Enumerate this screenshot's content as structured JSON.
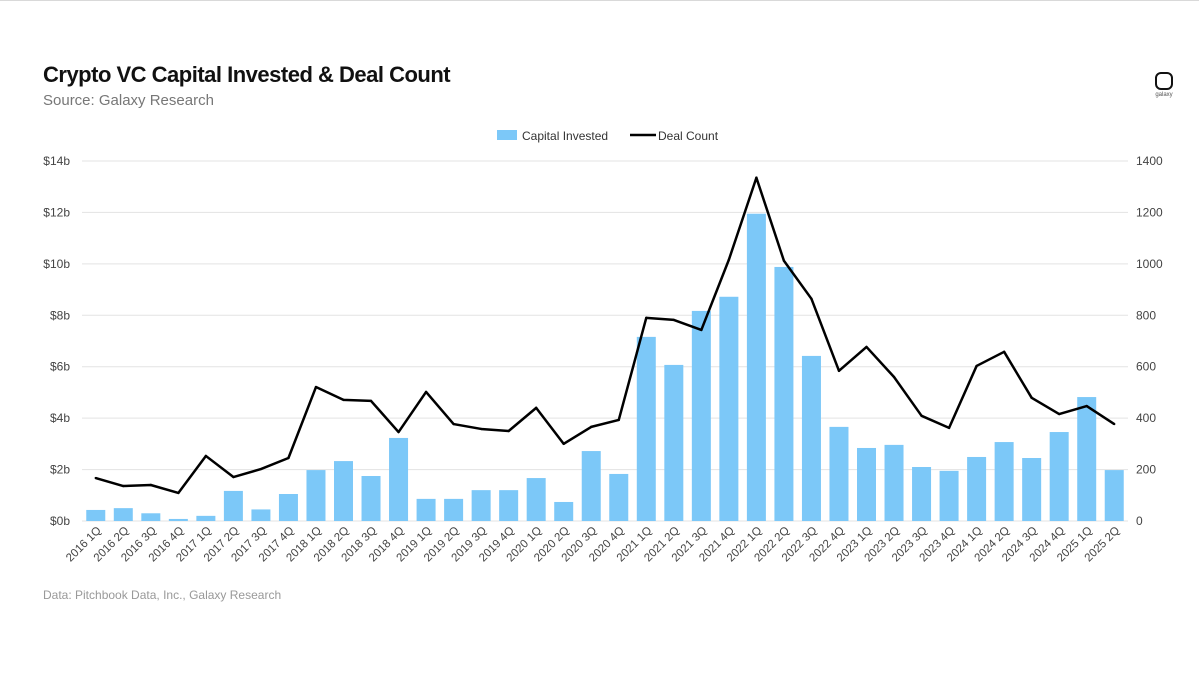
{
  "header": {
    "title": "Crypto VC Capital Invested & Deal Count",
    "subtitle": "Source: Galaxy Research",
    "logo_text": "galaxy"
  },
  "footer": {
    "source": "Data: Pitchbook Data, Inc., Galaxy Research"
  },
  "chart_data": {
    "type": "bar+line",
    "title": "Crypto VC Capital Invested & Deal Count",
    "legend_position": "top-center",
    "grid": true,
    "colors": {
      "bars": "#7cc8f8",
      "line": "#000000"
    },
    "categories": [
      "2016 1Q",
      "2016 2Q",
      "2016 3Q",
      "2016 4Q",
      "2017 1Q",
      "2017 2Q",
      "2017 3Q",
      "2017 4Q",
      "2018 1Q",
      "2018 2Q",
      "2018 3Q",
      "2018 4Q",
      "2019 1Q",
      "2019 2Q",
      "2019 3Q",
      "2019 4Q",
      "2020 1Q",
      "2020 2Q",
      "2020 3Q",
      "2020 4Q",
      "2021 1Q",
      "2021 2Q",
      "2021 3Q",
      "2021 4Q",
      "2022 1Q",
      "2022 2Q",
      "2022 3Q",
      "2022 4Q",
      "2023 1Q",
      "2023 2Q",
      "2023 3Q",
      "2023 4Q",
      "2024 1Q",
      "2024 2Q",
      "2024 3Q",
      "2024 4Q",
      "2025 1Q",
      "2025 2Q"
    ],
    "series": [
      {
        "name": "Capital Invested",
        "type": "bar",
        "axis": "left",
        "unit": "$b",
        "values": [
          0.43,
          0.5,
          0.3,
          0.08,
          0.2,
          1.17,
          0.45,
          1.05,
          1.98,
          2.33,
          1.75,
          3.23,
          0.86,
          0.86,
          1.2,
          1.2,
          1.67,
          0.74,
          2.72,
          1.83,
          7.16,
          6.07,
          8.17,
          8.72,
          11.95,
          9.88,
          6.42,
          3.66,
          2.84,
          2.96,
          2.1,
          1.95,
          2.49,
          3.07,
          2.45,
          3.46,
          4.82,
          1.98
        ]
      },
      {
        "name": "Deal Count",
        "type": "line",
        "axis": "right",
        "values": [
          167,
          136,
          140,
          109,
          253,
          171,
          202,
          245,
          521,
          471,
          467,
          346,
          502,
          377,
          358,
          350,
          440,
          300,
          366,
          393,
          790,
          782,
          743,
          1016,
          1335,
          1012,
          864,
          584,
          677,
          560,
          409,
          362,
          603,
          658,
          479,
          416,
          447,
          377
        ]
      }
    ],
    "y_left": {
      "range": [
        0,
        14
      ],
      "ticks": [
        "$0b",
        "$2b",
        "$4b",
        "$6b",
        "$8b",
        "$10b",
        "$12b",
        "$14b"
      ]
    },
    "y_right": {
      "range": [
        0,
        1400
      ],
      "ticks": [
        "0",
        "200",
        "400",
        "600",
        "800",
        "1000",
        "1200",
        "1400"
      ]
    }
  }
}
